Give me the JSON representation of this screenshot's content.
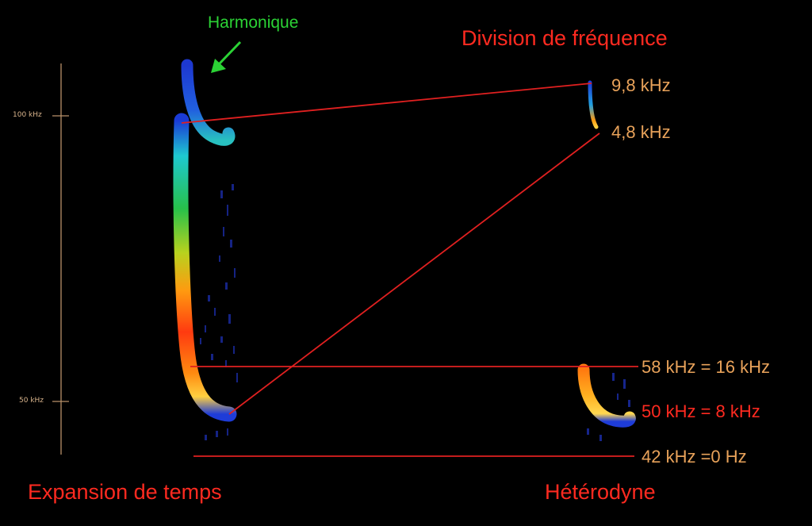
{
  "axis": {
    "ticks": [
      "100 kHz",
      "50 kHz"
    ]
  },
  "annotations": {
    "harmonique": "Harmonique",
    "division": "Division de fréquence",
    "expansion": "Expansion de temps",
    "heterodyne": "Hétérodyne"
  },
  "frequency_labels": {
    "f98": "9,8 kHz",
    "f48": "4,8 kHz",
    "f58": "58 kHz = 16 kHz",
    "f50": "50 kHz = 8 kHz",
    "f42": "42 kHz =0 Hz"
  },
  "colors": {
    "background": "#000000",
    "title_red": "#ff2a20",
    "label_orange": "#e8a25a",
    "harmonique_green": "#2bd235",
    "connector_red": "#e02020",
    "axis": "#b9916a"
  }
}
